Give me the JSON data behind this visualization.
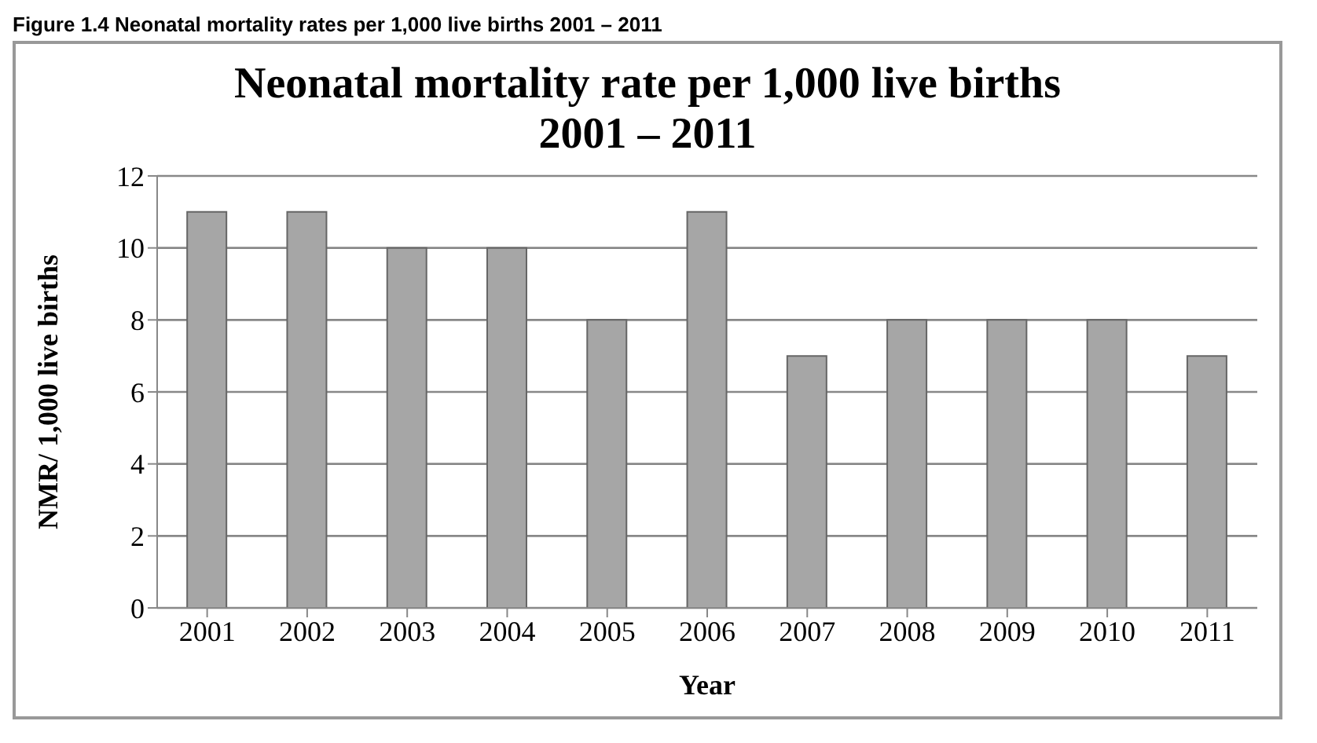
{
  "chart_data": {
    "type": "bar",
    "title": "Neonatal mortality rate per 1,000 live births\n2001 – 2011",
    "annotations": [
      "Figure 1.4 Neonatal mortality rates per 1,000 live births 2001 – 2011"
    ],
    "xlabel": "Year",
    "ylabel": "NMR/ 1,000 live births",
    "categories": [
      "2001",
      "2002",
      "2003",
      "2004",
      "2005",
      "2006",
      "2007",
      "2008",
      "2009",
      "2010",
      "2011"
    ],
    "values": [
      11,
      11,
      10,
      10,
      8,
      11,
      7,
      8,
      8,
      8,
      7
    ],
    "color": "#a6a6a6",
    "ylim": [
      0,
      12
    ],
    "yticks": [
      0,
      2,
      4,
      6,
      8,
      10,
      12
    ],
    "grid": "y"
  }
}
